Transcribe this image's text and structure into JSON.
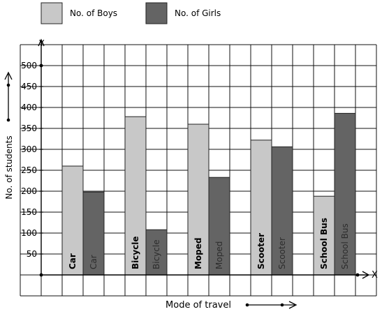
{
  "chart_data": {
    "type": "bar",
    "title": "",
    "xlabel": "Mode of travel",
    "ylabel": "No. of students",
    "x_axis_letter": "X",
    "y_axis_letter": "Y",
    "categories": [
      "Car",
      "Bicycle",
      "Moped",
      "Scooter",
      "School Bus"
    ],
    "series": [
      {
        "name": "No. of Boys",
        "color": "#c8c8c8",
        "values": [
          260,
          378,
          360,
          322,
          188
        ]
      },
      {
        "name": "No. of Girls",
        "color": "#646464",
        "values": [
          198,
          108,
          233,
          306,
          386
        ]
      }
    ],
    "y_ticks": [
      {
        "value": 50,
        "label": "50"
      },
      {
        "value": 100,
        "label": "100"
      },
      {
        "value": 150,
        "label": "150"
      },
      {
        "value": 200,
        "label": "200"
      },
      {
        "value": 250,
        "label": "250"
      },
      {
        "value": 300,
        "label": "300"
      },
      {
        "value": 350,
        "label": "350"
      },
      {
        "value": 400,
        "label": "400"
      },
      {
        "value": 450,
        "label": "450"
      },
      {
        "value": 500,
        "label": "500"
      }
    ],
    "ylim": [
      -50,
      550
    ],
    "grid": true,
    "legend": "top-left"
  }
}
